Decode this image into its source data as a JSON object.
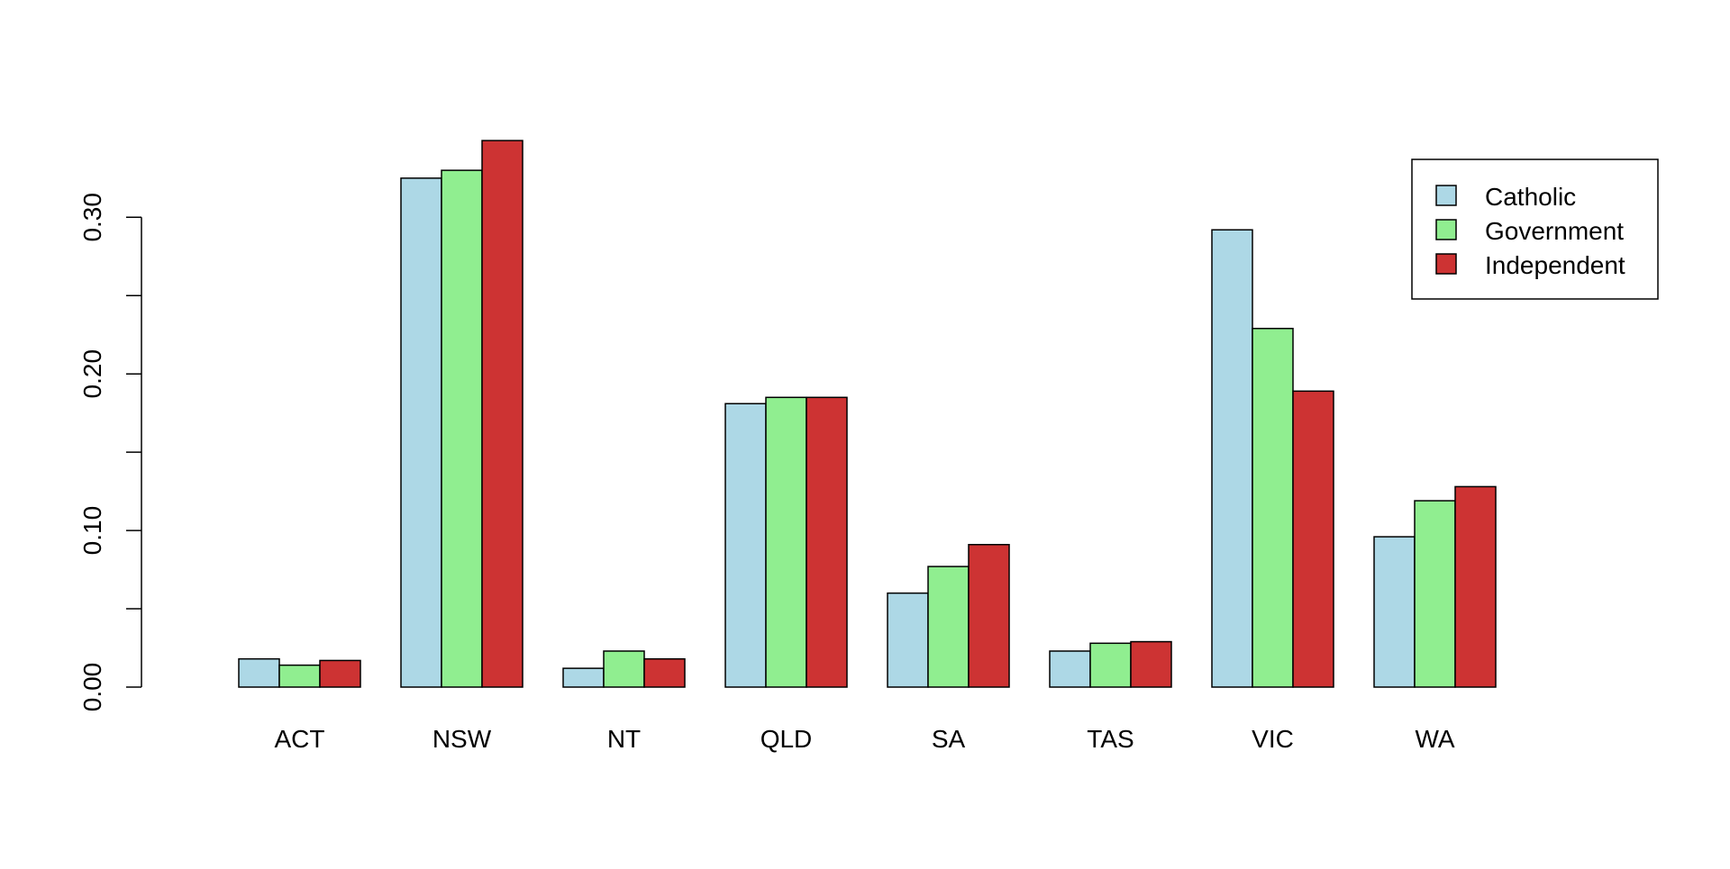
{
  "chart_data": {
    "type": "bar",
    "categories": [
      "ACT",
      "NSW",
      "NT",
      "QLD",
      "SA",
      "TAS",
      "VIC",
      "WA"
    ],
    "series": [
      {
        "name": "Catholic",
        "color": "#ADD8E6",
        "values": [
          0.018,
          0.325,
          0.012,
          0.181,
          0.06,
          0.023,
          0.292,
          0.096
        ]
      },
      {
        "name": "Government",
        "color": "#90EE90",
        "values": [
          0.014,
          0.33,
          0.023,
          0.185,
          0.077,
          0.028,
          0.229,
          0.119
        ]
      },
      {
        "name": "Independent",
        "color": "#CD3333",
        "values": [
          0.017,
          0.349,
          0.018,
          0.185,
          0.091,
          0.029,
          0.189,
          0.128
        ]
      }
    ],
    "y_ticks": [
      0.0,
      0.05,
      0.1,
      0.15,
      0.2,
      0.25,
      0.3
    ],
    "y_tick_labels": [
      "0.00",
      "",
      "0.10",
      "",
      "0.20",
      "",
      "0.30"
    ],
    "ylim": [
      0,
      0.35
    ],
    "grid": false,
    "legend_position": "top-right",
    "title": "",
    "xlabel": "",
    "ylabel": ""
  }
}
